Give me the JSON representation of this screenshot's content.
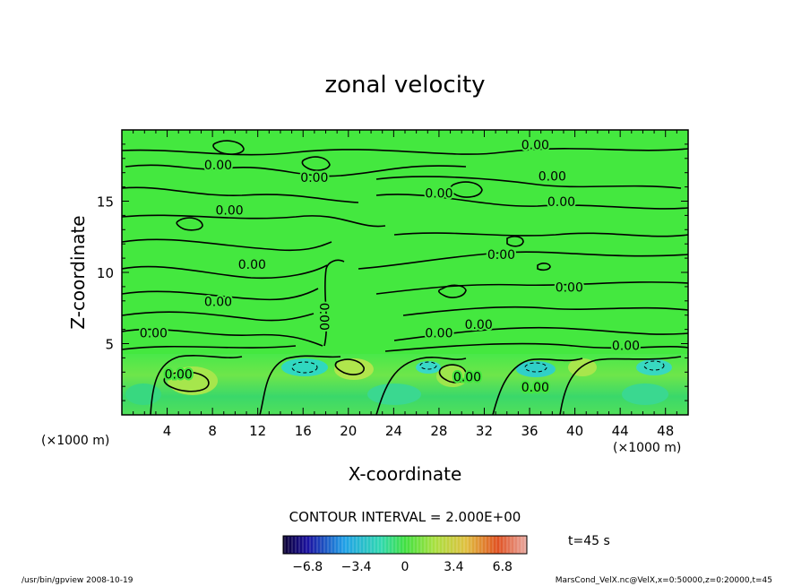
{
  "chart_data": {
    "type": "contour",
    "title": "zonal velocity",
    "xlabel": "X-coordinate",
    "ylabel": "Z-coordinate",
    "x_unit": "(×1000 m)",
    "y_unit": "(×1000 m)",
    "xlim": [
      0,
      50
    ],
    "ylim": [
      0,
      20
    ],
    "x_ticks": [
      4,
      8,
      12,
      16,
      20,
      24,
      28,
      32,
      36,
      40,
      44,
      48
    ],
    "y_ticks": [
      5,
      10,
      15
    ],
    "contour_interval_label": "CONTOUR INTERVAL = 2.000E+00",
    "contour_labels": [
      {
        "x": 8.5,
        "z": 17.5,
        "text": "0.00"
      },
      {
        "x": 17.0,
        "z": 16.6,
        "text": "0.00"
      },
      {
        "x": 36.5,
        "z": 18.9,
        "text": "0.00"
      },
      {
        "x": 38.0,
        "z": 16.7,
        "text": "0.00"
      },
      {
        "x": 28.0,
        "z": 15.5,
        "text": "0.00"
      },
      {
        "x": 38.8,
        "z": 14.9,
        "text": "0.00"
      },
      {
        "x": 9.5,
        "z": 14.3,
        "text": "0.00"
      },
      {
        "x": 11.5,
        "z": 10.5,
        "text": "0.00"
      },
      {
        "x": 33.5,
        "z": 11.2,
        "text": "0.00"
      },
      {
        "x": 39.5,
        "z": 8.9,
        "text": "0.00"
      },
      {
        "x": 8.5,
        "z": 7.9,
        "text": "0.00"
      },
      {
        "x": 17.8,
        "z": 6.9,
        "text": "0.00",
        "rotated": true
      },
      {
        "x": 2.8,
        "z": 5.7,
        "text": "0.00"
      },
      {
        "x": 28.0,
        "z": 5.7,
        "text": "0.00"
      },
      {
        "x": 31.5,
        "z": 6.3,
        "text": "0.00"
      },
      {
        "x": 44.5,
        "z": 4.8,
        "text": "0.00"
      },
      {
        "x": 5.0,
        "z": 2.8,
        "text": "0.00"
      },
      {
        "x": 30.5,
        "z": 2.6,
        "text": "0.00"
      },
      {
        "x": 36.5,
        "z": 1.9,
        "text": "0.00"
      }
    ],
    "colorbar": {
      "min": -8.5,
      "max": 8.5,
      "ticks": [
        "−6.8",
        "−3.4",
        "0",
        "3.4",
        "6.8"
      ],
      "tick_values": [
        -6.8,
        -3.4,
        0,
        3.4,
        6.8
      ]
    },
    "time_label": "t=45 s",
    "footer_left": "/usr/bin/gpview   2008-10-19",
    "footer_right": "MarsCond_VelX.nc@VelX,x=0:50000,z=0:20000,t=45"
  }
}
